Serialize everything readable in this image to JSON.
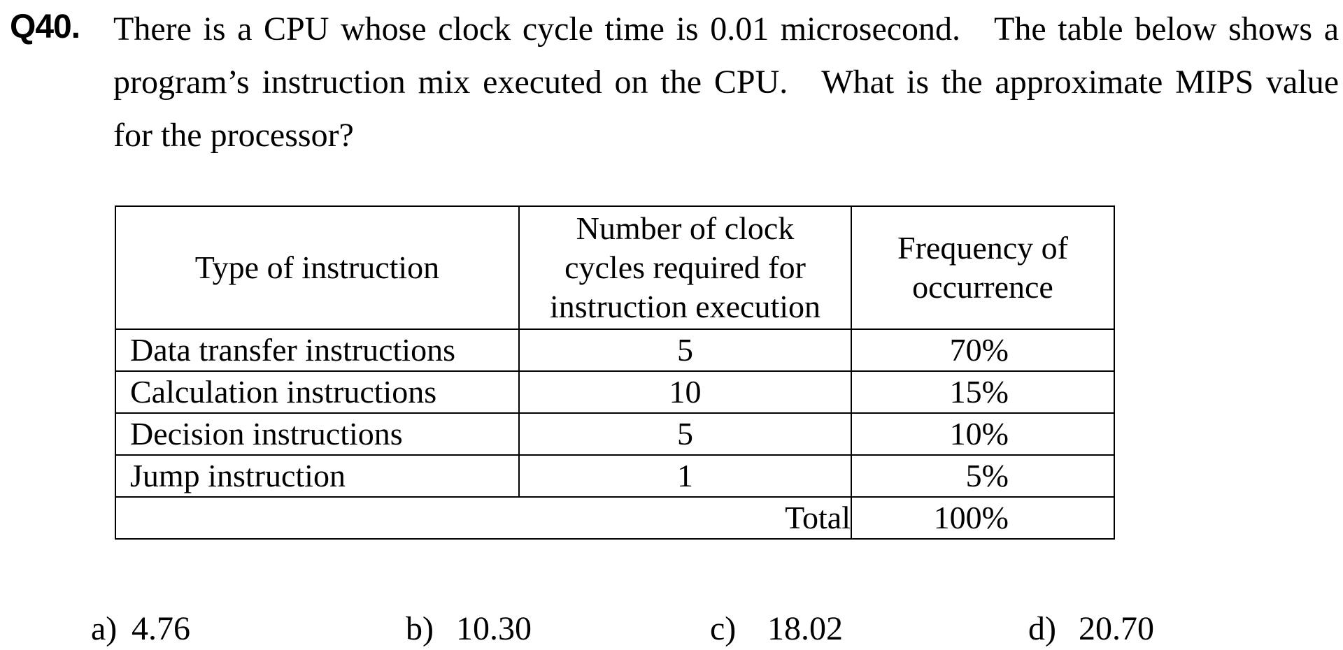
{
  "question": {
    "number": "Q40.",
    "lines": [
      "There is a CPU whose clock cycle time is 0.01 microsecond.",
      "The table below shows a",
      "program’s instruction mix executed on the CPU.",
      "What is the approximate MIPS value",
      "for the processor?"
    ]
  },
  "table": {
    "headers": [
      "Type of instruction",
      "Number of clock cycles required for instruction execution",
      "Frequency of occurrence"
    ],
    "header_lines": {
      "cycles": [
        "Number of clock",
        "cycles required for",
        "instruction execution"
      ],
      "frequency": [
        "Frequency of",
        "occurrence"
      ]
    },
    "rows": [
      {
        "type": "Data transfer instructions",
        "cycles": "5",
        "frequency": "70%"
      },
      {
        "type": "Calculation instructions",
        "cycles": "10",
        "frequency": "15%"
      },
      {
        "type": "Decision instructions",
        "cycles": "5",
        "frequency": "10%"
      },
      {
        "type": "Jump instruction",
        "cycles": "1",
        "frequency": "5%"
      }
    ],
    "total": {
      "label": "Total",
      "frequency": "100%"
    }
  },
  "choices": [
    {
      "letter": "a)",
      "value": "4.76"
    },
    {
      "letter": "b)",
      "value": "10.30"
    },
    {
      "letter": "c)",
      "value": "18.02"
    },
    {
      "letter": "d)",
      "value": "20.70"
    }
  ]
}
